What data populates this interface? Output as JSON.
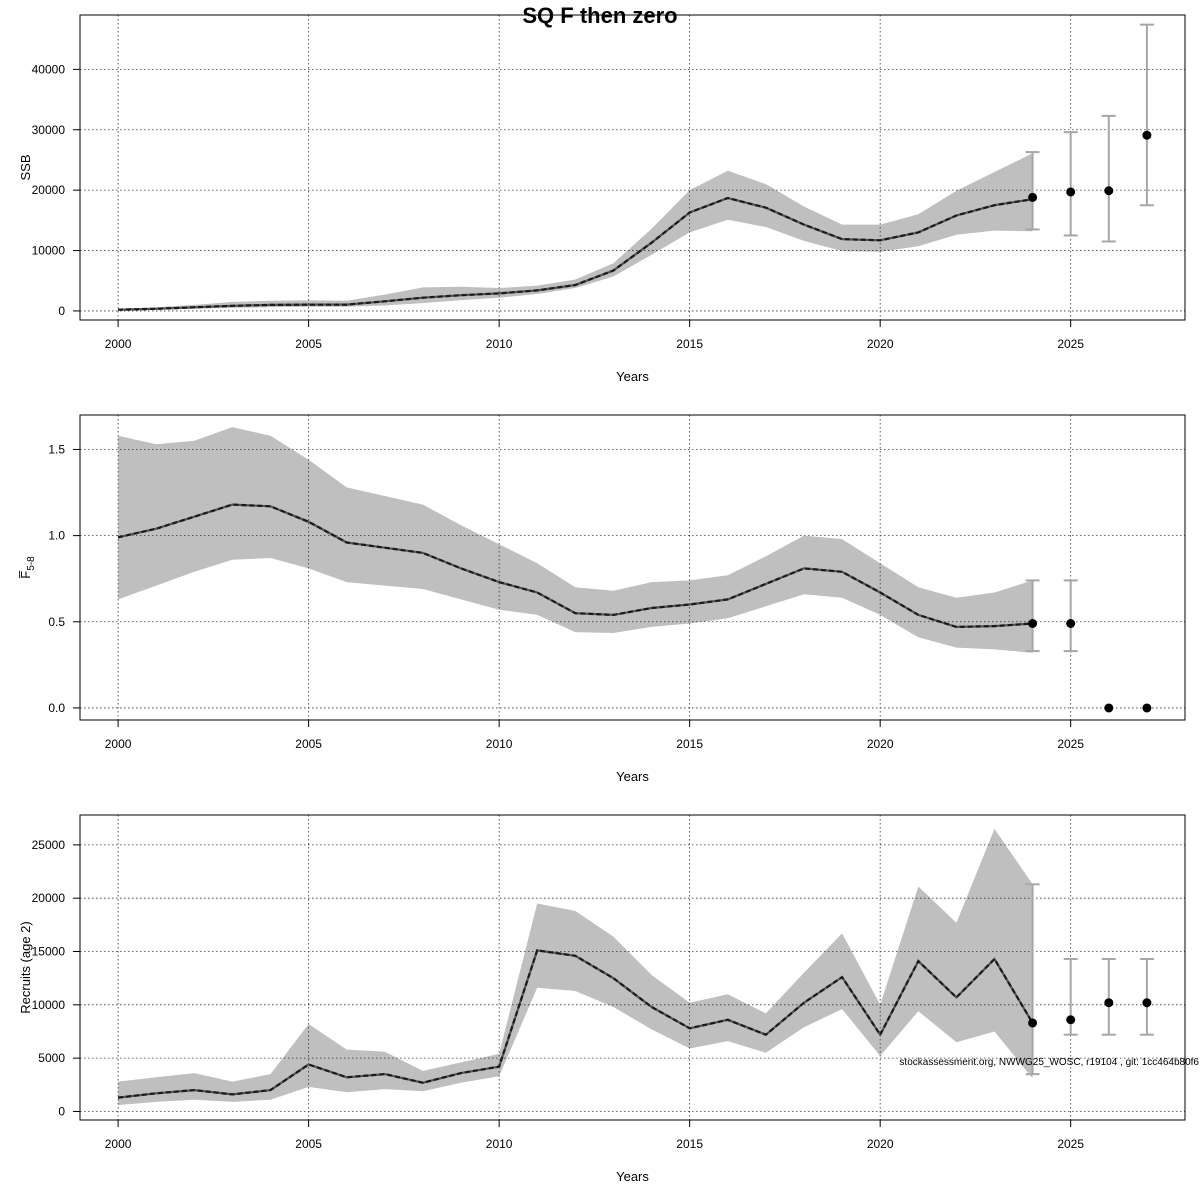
{
  "title": "SQ F then zero",
  "footnote": "stockassessment.org, NWWG25_WOSC, r19104 , git: 1cc464b80f6",
  "colors": {
    "band": "#bfbfbf",
    "line": "#1a1a1a",
    "errorbar": "#a6a6a6",
    "point": "#000000",
    "grid": "#333333"
  },
  "chart_data": [
    {
      "type": "line",
      "name": "ssb",
      "xlabel": "Years",
      "ylabel": "SSB",
      "xlim": [
        1999,
        2028
      ],
      "ylim": [
        -1500,
        49000
      ],
      "xticks": [
        2000,
        2005,
        2010,
        2015,
        2020,
        2025
      ],
      "xtick_labels": [
        "2000",
        "2005",
        "2010",
        "2015",
        "2020",
        "2025"
      ],
      "yticks": [
        0,
        10000,
        20000,
        30000,
        40000
      ],
      "ytick_labels": [
        "0",
        "10000",
        "20000",
        "30000",
        "40000"
      ],
      "grid": true,
      "x": [
        2000,
        2001,
        2002,
        2003,
        2004,
        2005,
        2006,
        2007,
        2008,
        2009,
        2010,
        2011,
        2012,
        2013,
        2014,
        2015,
        2016,
        2017,
        2018,
        2019,
        2020,
        2021,
        2022,
        2023,
        2024
      ],
      "estimate": [
        200,
        350,
        600,
        850,
        1000,
        1050,
        1050,
        1600,
        2200,
        2600,
        2900,
        3400,
        4300,
        6700,
        11300,
        16300,
        18700,
        17100,
        14300,
        11900,
        11700,
        13000,
        15800,
        17500,
        18500
      ],
      "lower": [
        100,
        200,
        350,
        500,
        600,
        700,
        700,
        900,
        1300,
        1800,
        2200,
        2800,
        3800,
        5700,
        9300,
        13000,
        15100,
        13900,
        11600,
        9900,
        9800,
        10700,
        12600,
        13300,
        13200
      ],
      "upper": [
        350,
        600,
        1000,
        1500,
        1700,
        1750,
        1700,
        2700,
        3900,
        4000,
        3800,
        4200,
        5200,
        7900,
        13600,
        20000,
        23200,
        21000,
        17300,
        14300,
        14300,
        16000,
        19900,
        23000,
        26100
      ],
      "forecast": [
        {
          "x": 2024,
          "median": 18800,
          "low": 13500,
          "high": 26300
        },
        {
          "x": 2025,
          "median": 19700,
          "low": 12500,
          "high": 29600
        },
        {
          "x": 2026,
          "median": 19900,
          "low": 11500,
          "high": 32300
        },
        {
          "x": 2027,
          "median": 29100,
          "low": 17500,
          "high": 47400
        }
      ]
    },
    {
      "type": "line",
      "name": "fbar",
      "xlabel": "Years",
      "ylabel": "F̅5-8",
      "ylabel_main": "F̅",
      "ylabel_sub": "5-8",
      "xlim": [
        1999,
        2028
      ],
      "ylim": [
        -0.07,
        1.7
      ],
      "xticks": [
        2000,
        2005,
        2010,
        2015,
        2020,
        2025
      ],
      "xtick_labels": [
        "2000",
        "2005",
        "2010",
        "2015",
        "2020",
        "2025"
      ],
      "yticks": [
        0,
        0.5,
        1,
        1.5
      ],
      "ytick_labels": [
        "0.0",
        "0.5",
        "1.0",
        "1.5"
      ],
      "grid": true,
      "x": [
        2000,
        2001,
        2002,
        2003,
        2004,
        2005,
        2006,
        2007,
        2008,
        2009,
        2010,
        2011,
        2012,
        2013,
        2014,
        2015,
        2016,
        2017,
        2018,
        2019,
        2020,
        2021,
        2022,
        2023,
        2024
      ],
      "estimate": [
        0.99,
        1.04,
        1.11,
        1.18,
        1.17,
        1.08,
        0.96,
        0.93,
        0.9,
        0.81,
        0.73,
        0.67,
        0.55,
        0.54,
        0.58,
        0.6,
        0.63,
        0.72,
        0.81,
        0.79,
        0.67,
        0.54,
        0.47,
        0.475,
        0.49
      ],
      "lower": [
        0.63,
        0.71,
        0.79,
        0.86,
        0.87,
        0.81,
        0.73,
        0.71,
        0.69,
        0.63,
        0.57,
        0.54,
        0.44,
        0.435,
        0.47,
        0.49,
        0.52,
        0.59,
        0.66,
        0.64,
        0.54,
        0.41,
        0.35,
        0.34,
        0.32
      ],
      "upper": [
        1.58,
        1.53,
        1.55,
        1.63,
        1.58,
        1.44,
        1.28,
        1.23,
        1.18,
        1.06,
        0.95,
        0.84,
        0.7,
        0.68,
        0.73,
        0.74,
        0.77,
        0.88,
        1.0,
        0.98,
        0.84,
        0.7,
        0.64,
        0.67,
        0.74
      ],
      "forecast": [
        {
          "x": 2024,
          "median": 0.49,
          "low": 0.33,
          "high": 0.74
        },
        {
          "x": 2025,
          "median": 0.49,
          "low": 0.33,
          "high": 0.74
        },
        {
          "x": 2026,
          "median": 0.0
        },
        {
          "x": 2027,
          "median": 0.0
        }
      ]
    },
    {
      "type": "line",
      "name": "recruits",
      "xlabel": "Years",
      "ylabel": "Recruits (age 2)",
      "xlim": [
        1999,
        2028
      ],
      "ylim": [
        -800,
        27800
      ],
      "xticks": [
        2000,
        2005,
        2010,
        2015,
        2020,
        2025
      ],
      "xtick_labels": [
        "2000",
        "2005",
        "2010",
        "2015",
        "2020",
        "2025"
      ],
      "yticks": [
        0,
        5000,
        10000,
        15000,
        20000,
        25000
      ],
      "ytick_labels": [
        "0",
        "5000",
        "10000",
        "15000",
        "20000",
        "25000"
      ],
      "grid": true,
      "x": [
        2000,
        2001,
        2002,
        2003,
        2004,
        2005,
        2006,
        2007,
        2008,
        2009,
        2010,
        2011,
        2012,
        2013,
        2014,
        2015,
        2016,
        2017,
        2018,
        2019,
        2020,
        2021,
        2022,
        2023,
        2024
      ],
      "estimate": [
        1300,
        1700,
        2000,
        1600,
        2000,
        4400,
        3200,
        3500,
        2700,
        3600,
        4200,
        15100,
        14600,
        12500,
        9800,
        7800,
        8600,
        7200,
        10200,
        12600,
        7200,
        14100,
        10700,
        14300,
        8300
      ],
      "lower": [
        600,
        900,
        1100,
        900,
        1100,
        2300,
        1800,
        2100,
        1900,
        2700,
        3300,
        11600,
        11300,
        9800,
        7700,
        5900,
        6600,
        5500,
        7900,
        9600,
        5200,
        9400,
        6500,
        7500,
        3100
      ],
      "upper": [
        2800,
        3200,
        3600,
        2800,
        3500,
        8200,
        5800,
        5600,
        3800,
        4600,
        5400,
        19500,
        18800,
        16400,
        12800,
        10200,
        11000,
        9200,
        13000,
        16700,
        10000,
        21100,
        17700,
        26500,
        21300
      ],
      "forecast": [
        {
          "x": 2024,
          "median": 8300,
          "low": 3500,
          "high": 21300
        },
        {
          "x": 2025,
          "median": 8600,
          "low": 7200,
          "high": 14300
        },
        {
          "x": 2026,
          "median": 10200,
          "low": 7200,
          "high": 14300
        },
        {
          "x": 2027,
          "median": 10200,
          "low": 7200,
          "high": 14300
        }
      ]
    }
  ]
}
